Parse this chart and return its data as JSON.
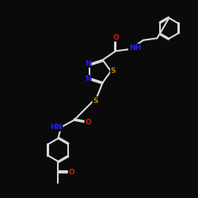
{
  "background_color": "#0a0a0a",
  "bond_color": "#d8d8d8",
  "bond_width": 1.5,
  "atom_colors": {
    "N": "#2222ee",
    "O": "#cc2200",
    "S": "#bb8800",
    "C": "#d8d8d8",
    "H": "#d8d8d8"
  },
  "figsize": [
    2.5,
    2.5
  ],
  "dpi": 100
}
